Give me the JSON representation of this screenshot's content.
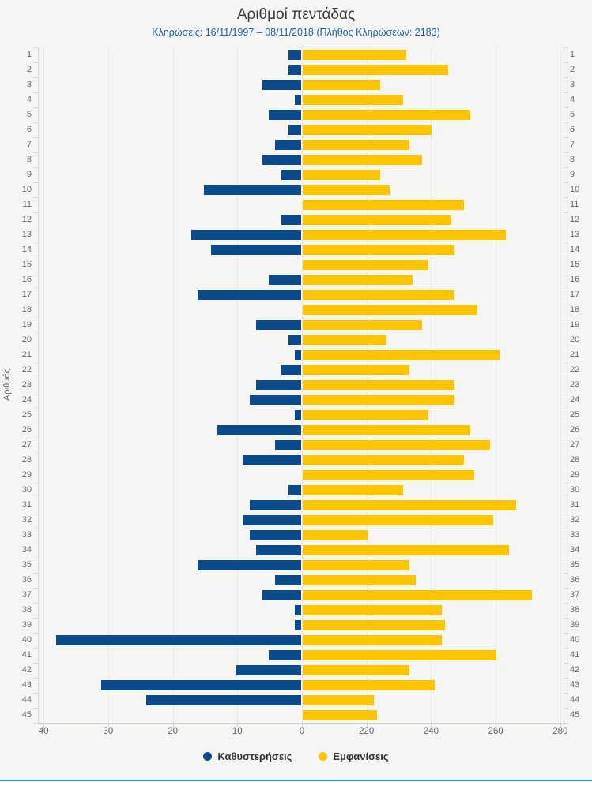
{
  "chart_data": {
    "type": "bar",
    "orientation": "horizontal_diverging",
    "title": "Αριθμοί πεντάδας",
    "subtitle": "Κληρώσεις: 16/11/1997 – 08/11/2018 (Πλήθος Κληρώσεων: 2183)",
    "ylabel": "Αριθμός",
    "legend_position": "bottom",
    "categories": [
      "1",
      "2",
      "3",
      "4",
      "5",
      "6",
      "7",
      "8",
      "9",
      "10",
      "11",
      "12",
      "13",
      "14",
      "15",
      "16",
      "17",
      "18",
      "19",
      "20",
      "21",
      "22",
      "23",
      "24",
      "25",
      "26",
      "27",
      "28",
      "29",
      "30",
      "31",
      "32",
      "33",
      "34",
      "35",
      "36",
      "37",
      "38",
      "39",
      "40",
      "41",
      "42",
      "43",
      "44",
      "45"
    ],
    "series": [
      {
        "name": "Καθυστερήσεις",
        "color": "#0b4a8b",
        "direction": "left",
        "values": [
          2,
          2,
          6,
          1,
          5,
          2,
          4,
          6,
          3,
          15,
          0,
          3,
          17,
          14,
          0,
          5,
          16,
          0,
          7,
          2,
          1,
          3,
          7,
          8,
          1,
          13,
          4,
          9,
          0,
          2,
          8,
          9,
          8,
          7,
          16,
          4,
          6,
          1,
          1,
          38,
          5,
          10,
          31,
          24,
          0
        ]
      },
      {
        "name": "Εμφανίσεις",
        "color": "#fdc400",
        "direction": "right",
        "values": [
          232,
          245,
          224,
          231,
          252,
          240,
          233,
          237,
          224,
          227,
          250,
          246,
          263,
          247,
          239,
          234,
          247,
          254,
          237,
          226,
          261,
          233,
          247,
          247,
          239,
          252,
          258,
          250,
          253,
          231,
          266,
          259,
          220,
          264,
          233,
          235,
          271,
          243,
          244,
          243,
          260,
          233,
          241,
          222,
          223
        ]
      }
    ],
    "x_axis": {
      "tick_labels": [
        "40",
        "30",
        "20",
        "10",
        "0",
        "220",
        "240",
        "260",
        "280"
      ],
      "left_scale": {
        "max": 40,
        "units_per_tick": 10
      },
      "right_scale": {
        "baseline": 200,
        "max": 280,
        "units_per_tick": 20
      },
      "grid": true
    }
  },
  "colors": {
    "background": "#f5f5f3",
    "subtitle_blue": "#1d5fa8",
    "axis_line": "#cfd5e4",
    "grid_line": "#e8e8e5",
    "label_gray": "#666666",
    "footer_line_blue": "#1a99d6"
  }
}
